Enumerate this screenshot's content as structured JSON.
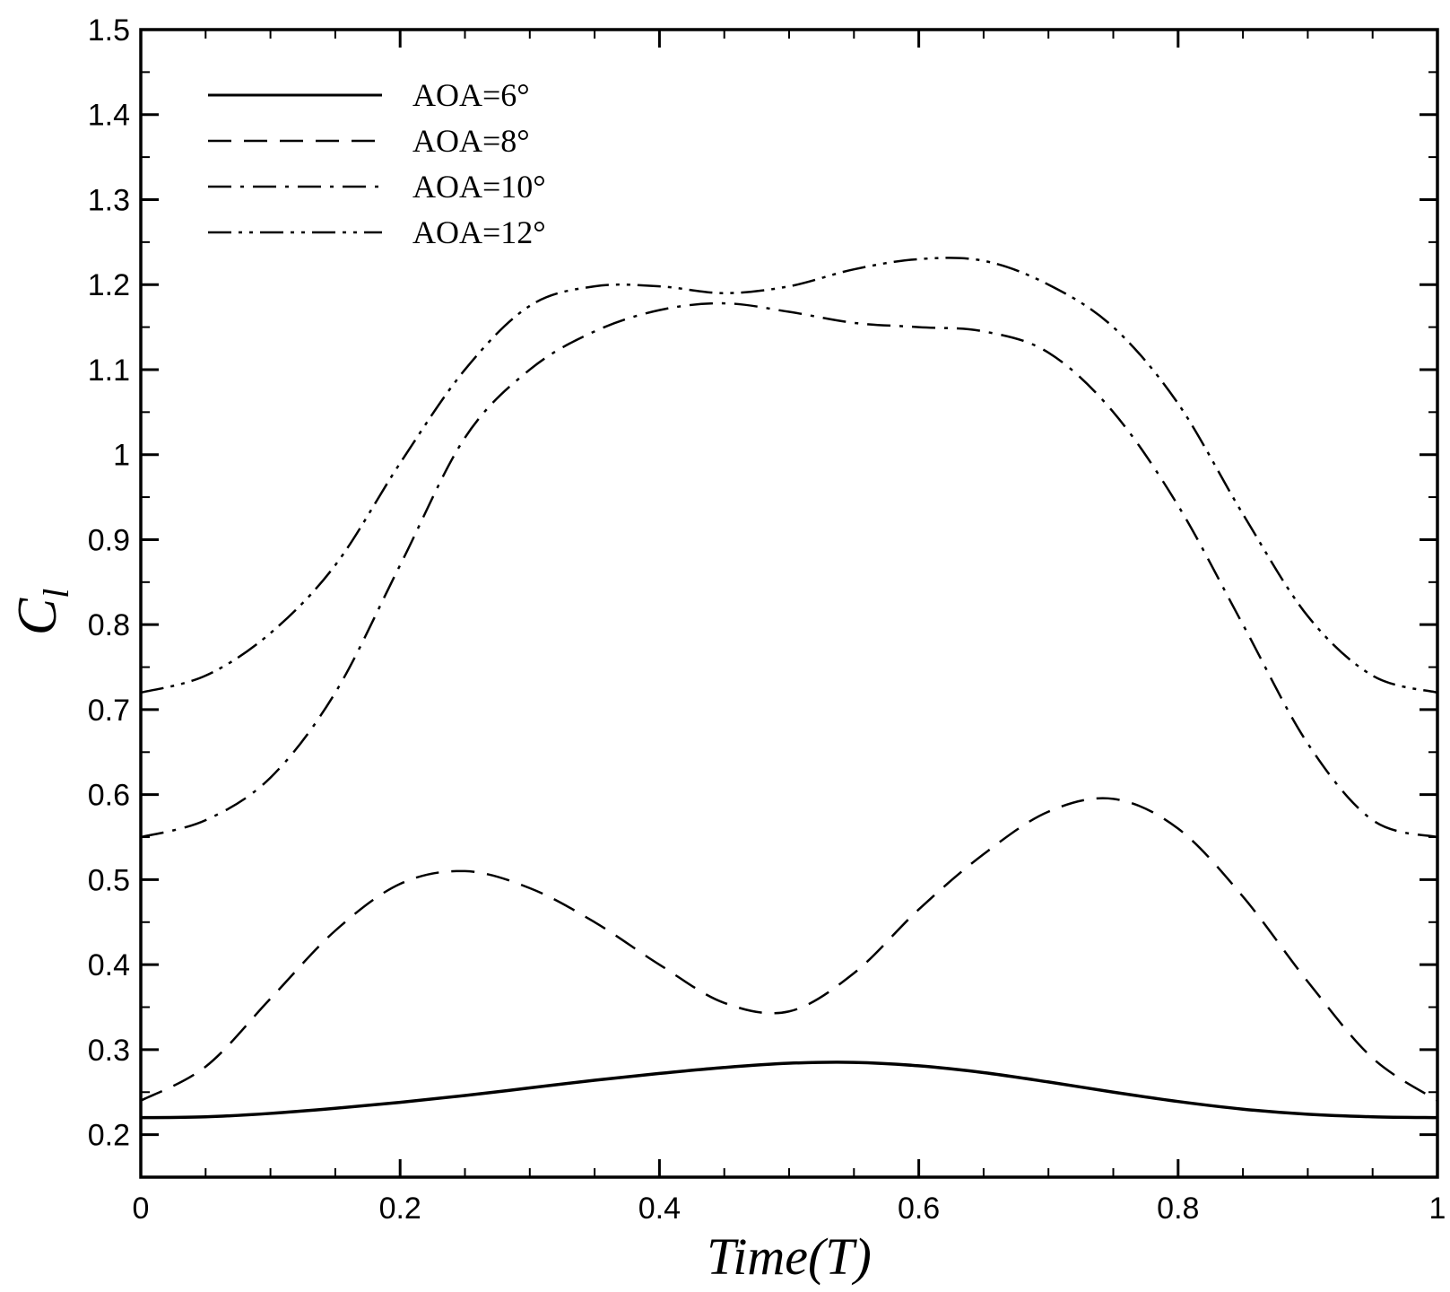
{
  "chart_data": {
    "type": "line",
    "title": "",
    "xlabel": "Time(T)",
    "ylabel": "C",
    "ylabel_subscript": "l",
    "xlim": [
      0,
      1
    ],
    "ylim": [
      0.15,
      1.5
    ],
    "xticks": [
      0,
      0.2,
      0.4,
      0.6,
      0.8,
      1
    ],
    "xtick_labels": [
      "0",
      "0.2",
      "0.4",
      "0.6",
      "0.8",
      "1"
    ],
    "yticks": [
      0.2,
      0.3,
      0.4,
      0.5,
      0.6,
      0.7,
      0.8,
      0.9,
      1.0,
      1.1,
      1.2,
      1.3,
      1.4,
      1.5
    ],
    "ytick_labels": [
      "0.2",
      "0.3",
      "0.4",
      "0.5",
      "0.6",
      "0.7",
      "0.8",
      "0.9",
      "1",
      "1.1",
      "1.2",
      "1.3",
      "1.4",
      "1.5"
    ],
    "grid": false,
    "legend_position": "top-left",
    "series": [
      {
        "name": "AOA=6°",
        "style": "solid",
        "x": [
          0,
          0.05,
          0.1,
          0.15,
          0.2,
          0.25,
          0.3,
          0.35,
          0.4,
          0.45,
          0.5,
          0.55,
          0.6,
          0.65,
          0.7,
          0.75,
          0.8,
          0.85,
          0.9,
          0.95,
          1
        ],
        "y": [
          0.22,
          0.221,
          0.225,
          0.231,
          0.238,
          0.246,
          0.255,
          0.264,
          0.272,
          0.279,
          0.284,
          0.285,
          0.281,
          0.273,
          0.262,
          0.25,
          0.239,
          0.23,
          0.224,
          0.221,
          0.22
        ]
      },
      {
        "name": "AOA=8°",
        "style": "dash",
        "x": [
          0,
          0.05,
          0.1,
          0.15,
          0.2,
          0.25,
          0.3,
          0.35,
          0.4,
          0.45,
          0.5,
          0.55,
          0.6,
          0.65,
          0.7,
          0.75,
          0.8,
          0.85,
          0.9,
          0.95,
          1
        ],
        "y": [
          0.24,
          0.28,
          0.36,
          0.44,
          0.495,
          0.51,
          0.49,
          0.45,
          0.4,
          0.355,
          0.345,
          0.39,
          0.465,
          0.53,
          0.58,
          0.595,
          0.56,
          0.48,
          0.38,
          0.29,
          0.24
        ]
      },
      {
        "name": "AOA=10°",
        "style": "dashdot",
        "x": [
          0,
          0.05,
          0.1,
          0.15,
          0.2,
          0.25,
          0.3,
          0.35,
          0.4,
          0.45,
          0.5,
          0.55,
          0.6,
          0.65,
          0.7,
          0.75,
          0.8,
          0.85,
          0.9,
          0.95,
          1
        ],
        "y": [
          0.55,
          0.57,
          0.62,
          0.72,
          0.87,
          1.02,
          1.1,
          1.145,
          1.17,
          1.178,
          1.168,
          1.155,
          1.15,
          1.145,
          1.12,
          1.05,
          0.94,
          0.8,
          0.66,
          0.57,
          0.55
        ]
      },
      {
        "name": "AOA=12°",
        "style": "dashdotdot",
        "x": [
          0,
          0.05,
          0.1,
          0.15,
          0.2,
          0.25,
          0.3,
          0.35,
          0.4,
          0.45,
          0.5,
          0.55,
          0.6,
          0.65,
          0.7,
          0.75,
          0.8,
          0.85,
          0.9,
          0.95,
          1
        ],
        "y": [
          0.72,
          0.74,
          0.79,
          0.87,
          0.99,
          1.1,
          1.175,
          1.198,
          1.198,
          1.19,
          1.198,
          1.218,
          1.23,
          1.228,
          1.2,
          1.15,
          1.06,
          0.93,
          0.81,
          0.74,
          0.72
        ]
      }
    ]
  }
}
